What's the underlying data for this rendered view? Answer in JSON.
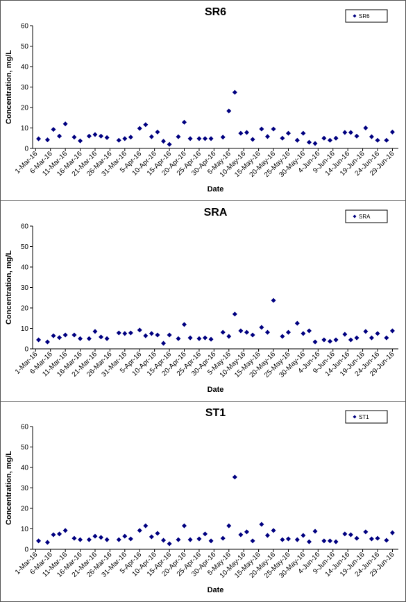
{
  "chart_data": [
    {
      "type": "scatter",
      "title": "SR6",
      "xlabel": "Date",
      "ylabel": "Concentration, mg/L",
      "legend": "upper right",
      "x": [
        "2016-03-02",
        "2016-03-05",
        "2016-03-07",
        "2016-03-09",
        "2016-03-11",
        "2016-03-14",
        "2016-03-16",
        "2016-03-19",
        "2016-03-21",
        "2016-03-23",
        "2016-03-25",
        "2016-03-29",
        "2016-03-31",
        "2016-04-02",
        "2016-04-05",
        "2016-04-07",
        "2016-04-09",
        "2016-04-11",
        "2016-04-13",
        "2016-04-15",
        "2016-04-18",
        "2016-04-20",
        "2016-04-22",
        "2016-04-25",
        "2016-04-27",
        "2016-04-29",
        "2016-05-03",
        "2016-05-05",
        "2016-05-07",
        "2016-05-09",
        "2016-05-11",
        "2016-05-13",
        "2016-05-16",
        "2016-05-18",
        "2016-05-20",
        "2016-05-23",
        "2016-05-25",
        "2016-05-28",
        "2016-05-30",
        "2016-06-01",
        "2016-06-03",
        "2016-06-06",
        "2016-06-08",
        "2016-06-10",
        "2016-06-13",
        "2016-06-15",
        "2016-06-17",
        "2016-06-20",
        "2016-06-22",
        "2016-06-24",
        "2016-06-27",
        "2016-06-29"
      ],
      "series": [
        {
          "name": "SR6",
          "color": "#000080",
          "values": [
            4.7,
            4.2,
            9.3,
            6,
            12,
            5.5,
            3.7,
            6,
            6.8,
            6,
            5.3,
            4,
            4.8,
            5.5,
            9.8,
            11.6,
            5.7,
            8,
            3.5,
            2,
            5.7,
            12.8,
            4.8,
            4.8,
            4.8,
            4.8,
            5.5,
            18.3,
            27.4,
            7.4,
            7.8,
            4.4,
            9.5,
            5.8,
            9.5,
            5,
            7.4,
            4,
            7.4,
            3,
            2.4,
            5,
            4,
            5,
            7.8,
            7.8,
            6,
            10,
            5.7,
            4,
            4,
            8
          ]
        }
      ],
      "xlim": [
        "2016-02-29",
        "2016-07-01"
      ],
      "ylim": [
        0,
        60
      ],
      "yticks": [
        0,
        10,
        20,
        30,
        40,
        50,
        60
      ],
      "xticks": [
        {
          "value": "2016-03-01",
          "label": "1-Mar-16"
        },
        {
          "value": "2016-03-06",
          "label": "6-Mar-16"
        },
        {
          "value": "2016-03-11",
          "label": "11-Mar-16"
        },
        {
          "value": "2016-03-16",
          "label": "16-Mar-16"
        },
        {
          "value": "2016-03-21",
          "label": "21-Mar-16"
        },
        {
          "value": "2016-03-26",
          "label": "26-Mar-16"
        },
        {
          "value": "2016-03-31",
          "label": "31-Mar-16"
        },
        {
          "value": "2016-04-05",
          "label": "5-Apr-16"
        },
        {
          "value": "2016-04-10",
          "label": "10-Apr-16"
        },
        {
          "value": "2016-04-15",
          "label": "15-Apr-16"
        },
        {
          "value": "2016-04-20",
          "label": "20-Apr-16"
        },
        {
          "value": "2016-04-25",
          "label": "25-Apr-16"
        },
        {
          "value": "2016-04-30",
          "label": "30-Apr-16"
        },
        {
          "value": "2016-05-05",
          "label": "5-May-16"
        },
        {
          "value": "2016-05-10",
          "label": "10-May-16"
        },
        {
          "value": "2016-05-15",
          "label": "15-May-16"
        },
        {
          "value": "2016-05-20",
          "label": "20-May-16"
        },
        {
          "value": "2016-05-25",
          "label": "25-May-16"
        },
        {
          "value": "2016-05-30",
          "label": "30-May-16"
        },
        {
          "value": "2016-06-04",
          "label": "4-Jun-16"
        },
        {
          "value": "2016-06-09",
          "label": "9-Jun-16"
        },
        {
          "value": "2016-06-14",
          "label": "14-Jun-16"
        },
        {
          "value": "2016-06-19",
          "label": "19-Jun-16"
        },
        {
          "value": "2016-06-24",
          "label": "24-Jun-16"
        },
        {
          "value": "2016-06-29",
          "label": "29-Jun-16"
        }
      ]
    },
    {
      "type": "scatter",
      "title": "SRA",
      "xlabel": "Date",
      "ylabel": "Concentration, mg/L",
      "legend": "upper right",
      "x": [
        "2016-03-02",
        "2016-03-05",
        "2016-03-07",
        "2016-03-09",
        "2016-03-11",
        "2016-03-14",
        "2016-03-16",
        "2016-03-19",
        "2016-03-21",
        "2016-03-23",
        "2016-03-25",
        "2016-03-29",
        "2016-03-31",
        "2016-04-02",
        "2016-04-05",
        "2016-04-07",
        "2016-04-09",
        "2016-04-11",
        "2016-04-13",
        "2016-04-15",
        "2016-04-18",
        "2016-04-20",
        "2016-04-22",
        "2016-04-25",
        "2016-04-27",
        "2016-04-29",
        "2016-05-03",
        "2016-05-05",
        "2016-05-07",
        "2016-05-09",
        "2016-05-11",
        "2016-05-13",
        "2016-05-16",
        "2016-05-18",
        "2016-05-20",
        "2016-05-23",
        "2016-05-25",
        "2016-05-28",
        "2016-05-30",
        "2016-06-01",
        "2016-06-03",
        "2016-06-06",
        "2016-06-08",
        "2016-06-10",
        "2016-06-13",
        "2016-06-15",
        "2016-06-17",
        "2016-06-20",
        "2016-06-22",
        "2016-06-24",
        "2016-06-27",
        "2016-06-29"
      ],
      "series": [
        {
          "name": "SRA",
          "color": "#000080",
          "values": [
            4.4,
            3.4,
            6.4,
            5.5,
            6.8,
            6.8,
            5,
            5,
            8.5,
            5.8,
            5,
            7.8,
            7.5,
            7.8,
            9.2,
            6.4,
            7.5,
            6.8,
            2.7,
            6.8,
            5,
            11.9,
            5.4,
            5,
            5.4,
            4.7,
            8.1,
            6.1,
            17,
            8.8,
            8.1,
            6.8,
            10.5,
            8.1,
            23.7,
            6.1,
            8.1,
            12.5,
            7.5,
            8.8,
            3.4,
            4.4,
            3.7,
            4.4,
            7.1,
            4.4,
            5.4,
            8.5,
            5.4,
            7.5,
            5.4,
            8.8
          ]
        }
      ],
      "xlim": [
        "2016-02-29",
        "2016-07-01"
      ],
      "ylim": [
        0,
        60
      ],
      "yticks": [
        0,
        10,
        20,
        30,
        40,
        50,
        60
      ],
      "xticks": [
        {
          "value": "2016-03-01",
          "label": "1-Mar-16"
        },
        {
          "value": "2016-03-06",
          "label": "6-Mar-16"
        },
        {
          "value": "2016-03-11",
          "label": "11-Mar-16"
        },
        {
          "value": "2016-03-16",
          "label": "16-Mar-16"
        },
        {
          "value": "2016-03-21",
          "label": "21-Mar-16"
        },
        {
          "value": "2016-03-26",
          "label": "26-Mar-16"
        },
        {
          "value": "2016-03-31",
          "label": "31-Mar-16"
        },
        {
          "value": "2016-04-05",
          "label": "5-Apr-16"
        },
        {
          "value": "2016-04-10",
          "label": "10-Apr-16"
        },
        {
          "value": "2016-04-15",
          "label": "15-Apr-16"
        },
        {
          "value": "2016-04-20",
          "label": "20-Apr-16"
        },
        {
          "value": "2016-04-25",
          "label": "25-Apr-16"
        },
        {
          "value": "2016-04-30",
          "label": "30-Apr-16"
        },
        {
          "value": "2016-05-05",
          "label": "5-May-16"
        },
        {
          "value": "2016-05-10",
          "label": "10-May-16"
        },
        {
          "value": "2016-05-15",
          "label": "15-May-16"
        },
        {
          "value": "2016-05-20",
          "label": "20-May-16"
        },
        {
          "value": "2016-05-25",
          "label": "25-May-16"
        },
        {
          "value": "2016-05-30",
          "label": "30-May-16"
        },
        {
          "value": "2016-06-04",
          "label": "4-Jun-16"
        },
        {
          "value": "2016-06-09",
          "label": "9-Jun-16"
        },
        {
          "value": "2016-06-14",
          "label": "14-Jun-16"
        },
        {
          "value": "2016-06-19",
          "label": "19-Jun-16"
        },
        {
          "value": "2016-06-24",
          "label": "24-Jun-16"
        },
        {
          "value": "2016-06-29",
          "label": "29-Jun-16"
        }
      ]
    },
    {
      "type": "scatter",
      "title": "ST1",
      "xlabel": "Date",
      "ylabel": "Concentration, mg/L",
      "legend": "upper right",
      "x": [
        "2016-03-02",
        "2016-03-05",
        "2016-03-07",
        "2016-03-09",
        "2016-03-11",
        "2016-03-14",
        "2016-03-16",
        "2016-03-19",
        "2016-03-21",
        "2016-03-23",
        "2016-03-25",
        "2016-03-29",
        "2016-03-31",
        "2016-04-02",
        "2016-04-05",
        "2016-04-07",
        "2016-04-09",
        "2016-04-11",
        "2016-04-13",
        "2016-04-15",
        "2016-04-18",
        "2016-04-20",
        "2016-04-22",
        "2016-04-25",
        "2016-04-27",
        "2016-04-29",
        "2016-05-03",
        "2016-05-05",
        "2016-05-07",
        "2016-05-09",
        "2016-05-11",
        "2016-05-13",
        "2016-05-16",
        "2016-05-18",
        "2016-05-20",
        "2016-05-23",
        "2016-05-25",
        "2016-05-28",
        "2016-05-30",
        "2016-06-01",
        "2016-06-03",
        "2016-06-06",
        "2016-06-08",
        "2016-06-10",
        "2016-06-13",
        "2016-06-15",
        "2016-06-17",
        "2016-06-20",
        "2016-06-22",
        "2016-06-24",
        "2016-06-27",
        "2016-06-29"
      ],
      "series": [
        {
          "name": "ST1",
          "color": "#000080",
          "values": [
            4.1,
            3.4,
            7.1,
            7.5,
            9.2,
            5.4,
            4.7,
            4.7,
            6.4,
            5.8,
            4.7,
            4.7,
            6.4,
            5.1,
            9.2,
            11.5,
            6.1,
            7.8,
            4.4,
            2.7,
            4.7,
            11.5,
            4.7,
            5.1,
            7.5,
            4.1,
            5.4,
            11.5,
            35.3,
            7.1,
            8.5,
            4.1,
            12.2,
            6.8,
            9.2,
            4.7,
            5.1,
            4.7,
            6.8,
            3.7,
            8.8,
            4.1,
            4.1,
            3.7,
            7.5,
            7.1,
            5.4,
            8.5,
            5.1,
            5.4,
            4.4,
            8.1
          ]
        }
      ],
      "xlim": [
        "2016-02-29",
        "2016-07-01"
      ],
      "ylim": [
        0,
        60
      ],
      "yticks": [
        0,
        10,
        20,
        30,
        40,
        50,
        60
      ],
      "xticks": [
        {
          "value": "2016-03-01",
          "label": "1-Mar-16"
        },
        {
          "value": "2016-03-06",
          "label": "6-Mar-16"
        },
        {
          "value": "2016-03-11",
          "label": "11-Mar-16"
        },
        {
          "value": "2016-03-16",
          "label": "16-Mar-16"
        },
        {
          "value": "2016-03-21",
          "label": "21-Mar-16"
        },
        {
          "value": "2016-03-26",
          "label": "26-Mar-16"
        },
        {
          "value": "2016-03-31",
          "label": "31-Mar-16"
        },
        {
          "value": "2016-04-05",
          "label": "5-Apr-16"
        },
        {
          "value": "2016-04-10",
          "label": "10-Apr-16"
        },
        {
          "value": "2016-04-15",
          "label": "15-Apr-16"
        },
        {
          "value": "2016-04-20",
          "label": "20-Apr-16"
        },
        {
          "value": "2016-04-25",
          "label": "25-Apr-16"
        },
        {
          "value": "2016-04-30",
          "label": "30-Apr-16"
        },
        {
          "value": "2016-05-05",
          "label": "5-May-16"
        },
        {
          "value": "2016-05-10",
          "label": "10-May-16"
        },
        {
          "value": "2016-05-15",
          "label": "15-May-16"
        },
        {
          "value": "2016-05-20",
          "label": "20-May-16"
        },
        {
          "value": "2016-05-25",
          "label": "25-May-16"
        },
        {
          "value": "2016-05-30",
          "label": "30-May-16"
        },
        {
          "value": "2016-06-04",
          "label": "4-Jun-16"
        },
        {
          "value": "2016-06-09",
          "label": "9-Jun-16"
        },
        {
          "value": "2016-06-14",
          "label": "14-Jun-16"
        },
        {
          "value": "2016-06-19",
          "label": "19-Jun-16"
        },
        {
          "value": "2016-06-24",
          "label": "24-Jun-16"
        },
        {
          "value": "2016-06-29",
          "label": "29-Jun-16"
        }
      ]
    }
  ]
}
